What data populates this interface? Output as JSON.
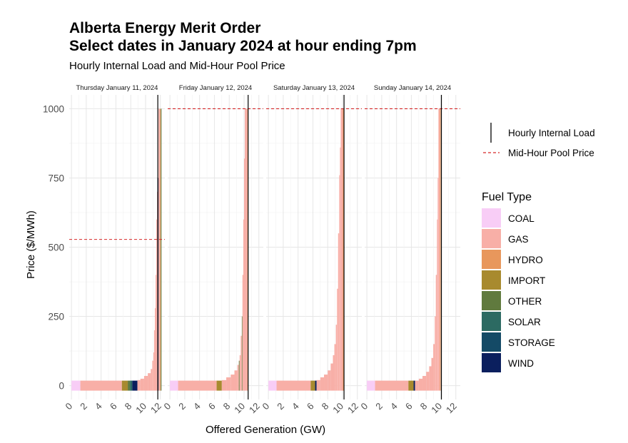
{
  "chart_data": {
    "type": "step-area",
    "title_line1": "Alberta Energy Merit Order",
    "title_line2": "Select dates in January 2024 at hour ending 7pm",
    "subtitle": "Hourly Internal Load and Mid-Hour Pool Price",
    "xlabel": "Offered Generation (GW)",
    "ylabel": "Price ($/MWh)",
    "xlim": [
      -0.3,
      12.6
    ],
    "ylim": [
      -50,
      1050
    ],
    "xticks": [
      0,
      2,
      4,
      6,
      8,
      10,
      12
    ],
    "yticks": [
      0,
      250,
      500,
      750,
      1000
    ],
    "fuel_colors": {
      "COAL": "#f8cdf6",
      "GAS": "#f8afa7",
      "HYDRO": "#e8975c",
      "IMPORT": "#a88a2e",
      "OTHER": "#607a3e",
      "SOLAR": "#2c6a62",
      "STORAGE": "#144a66",
      "WIND": "#0b1f5e"
    },
    "lines": {
      "load_label": "Hourly Internal Load",
      "price_label": "Mid-Hour Pool Price",
      "load_color": "#000000",
      "price_color": "#d62728"
    },
    "legend_title": "Fuel Type",
    "legend_order": [
      "COAL",
      "GAS",
      "HYDRO",
      "IMPORT",
      "OTHER",
      "SOLAR",
      "STORAGE",
      "WIND"
    ],
    "panels": [
      {
        "label": "Thursday January 11, 2024",
        "load_gw": 11.65,
        "pool_price": 528,
        "segments": [
          {
            "x0": 0,
            "x1": 1.2,
            "price": 0,
            "fuel": "COAL"
          },
          {
            "x0": 1.2,
            "x1": 6.8,
            "price": 0,
            "fuel": "GAS"
          },
          {
            "x0": 6.8,
            "x1": 7.6,
            "price": 0,
            "fuel": "IMPORT"
          },
          {
            "x0": 7.6,
            "x1": 7.9,
            "price": 0,
            "fuel": "OTHER"
          },
          {
            "x0": 7.9,
            "x1": 8.2,
            "price": 0,
            "fuel": "SOLAR"
          },
          {
            "x0": 8.2,
            "x1": 8.9,
            "price": 0,
            "fuel": "WIND"
          },
          {
            "x0": 8.9,
            "x1": 9.3,
            "price": 20,
            "fuel": "GAS"
          },
          {
            "x0": 9.3,
            "x1": 9.8,
            "price": 25,
            "fuel": "GAS"
          },
          {
            "x0": 9.8,
            "x1": 10.3,
            "price": 35,
            "fuel": "GAS"
          },
          {
            "x0": 10.3,
            "x1": 10.7,
            "price": 45,
            "fuel": "GAS"
          },
          {
            "x0": 10.7,
            "x1": 10.9,
            "price": 60,
            "fuel": "GAS"
          },
          {
            "x0": 10.9,
            "x1": 11.05,
            "price": 90,
            "fuel": "GAS"
          },
          {
            "x0": 11.05,
            "x1": 11.15,
            "price": 120,
            "fuel": "GAS"
          },
          {
            "x0": 11.15,
            "x1": 11.25,
            "price": 200,
            "fuel": "GAS"
          },
          {
            "x0": 11.25,
            "x1": 11.35,
            "price": 280,
            "fuel": "GAS"
          },
          {
            "x0": 11.35,
            "x1": 11.45,
            "price": 400,
            "fuel": "GAS"
          },
          {
            "x0": 11.45,
            "x1": 11.55,
            "price": 600,
            "fuel": "GAS"
          },
          {
            "x0": 11.55,
            "x1": 11.65,
            "price": 700,
            "fuel": "GAS"
          },
          {
            "x0": 11.65,
            "x1": 11.75,
            "price": 750,
            "fuel": "WIND"
          },
          {
            "x0": 11.75,
            "x1": 11.95,
            "price": 1000,
            "fuel": "GAS"
          },
          {
            "x0": 11.95,
            "x1": 12.05,
            "price": 1000,
            "fuel": "HYDRO"
          },
          {
            "x0": 12.05,
            "x1": 12.15,
            "price": 1000,
            "fuel": "OTHER"
          }
        ]
      },
      {
        "label": "Friday January 12, 2024",
        "load_gw": 10.55,
        "pool_price": 999.99,
        "segments": [
          {
            "x0": 0,
            "x1": 1.1,
            "price": 0,
            "fuel": "COAL"
          },
          {
            "x0": 1.1,
            "x1": 6.3,
            "price": 0,
            "fuel": "GAS"
          },
          {
            "x0": 6.3,
            "x1": 7.0,
            "price": 0,
            "fuel": "IMPORT"
          },
          {
            "x0": 7.0,
            "x1": 7.6,
            "price": 20,
            "fuel": "GAS"
          },
          {
            "x0": 7.6,
            "x1": 8.2,
            "price": 30,
            "fuel": "GAS"
          },
          {
            "x0": 8.2,
            "x1": 8.7,
            "price": 40,
            "fuel": "GAS"
          },
          {
            "x0": 8.7,
            "x1": 9.1,
            "price": 55,
            "fuel": "GAS"
          },
          {
            "x0": 9.1,
            "x1": 9.3,
            "price": 75,
            "fuel": "GAS"
          },
          {
            "x0": 9.3,
            "x1": 9.4,
            "price": 90,
            "fuel": "OTHER"
          },
          {
            "x0": 9.4,
            "x1": 9.55,
            "price": 110,
            "fuel": "GAS"
          },
          {
            "x0": 9.55,
            "x1": 9.7,
            "price": 180,
            "fuel": "GAS"
          },
          {
            "x0": 9.7,
            "x1": 9.78,
            "price": 250,
            "fuel": "OTHER"
          },
          {
            "x0": 9.78,
            "x1": 9.9,
            "price": 400,
            "fuel": "GAS"
          },
          {
            "x0": 9.9,
            "x1": 10.0,
            "price": 600,
            "fuel": "GAS"
          },
          {
            "x0": 10.0,
            "x1": 10.1,
            "price": 820,
            "fuel": "GAS"
          },
          {
            "x0": 10.1,
            "x1": 10.45,
            "price": 1000,
            "fuel": "GAS"
          },
          {
            "x0": 10.45,
            "x1": 10.55,
            "price": 1000,
            "fuel": "HYDRO"
          }
        ]
      },
      {
        "label": "Saturday January 13, 2024",
        "load_gw": 10.2,
        "pool_price": 999.99,
        "segments": [
          {
            "x0": 0,
            "x1": 1.1,
            "price": 0,
            "fuel": "COAL"
          },
          {
            "x0": 1.1,
            "x1": 5.7,
            "price": 0,
            "fuel": "GAS"
          },
          {
            "x0": 5.7,
            "x1": 6.3,
            "price": 0,
            "fuel": "IMPORT"
          },
          {
            "x0": 6.3,
            "x1": 6.5,
            "price": 0,
            "fuel": "WIND"
          },
          {
            "x0": 6.5,
            "x1": 7.0,
            "price": 20,
            "fuel": "GAS"
          },
          {
            "x0": 7.0,
            "x1": 7.5,
            "price": 30,
            "fuel": "GAS"
          },
          {
            "x0": 7.5,
            "x1": 8.0,
            "price": 40,
            "fuel": "GAS"
          },
          {
            "x0": 8.0,
            "x1": 8.4,
            "price": 55,
            "fuel": "GAS"
          },
          {
            "x0": 8.4,
            "x1": 8.7,
            "price": 80,
            "fuel": "GAS"
          },
          {
            "x0": 8.7,
            "x1": 8.9,
            "price": 110,
            "fuel": "GAS"
          },
          {
            "x0": 8.9,
            "x1": 9.1,
            "price": 150,
            "fuel": "GAS"
          },
          {
            "x0": 9.1,
            "x1": 9.25,
            "price": 220,
            "fuel": "GAS"
          },
          {
            "x0": 9.25,
            "x1": 9.4,
            "price": 350,
            "fuel": "GAS"
          },
          {
            "x0": 9.4,
            "x1": 9.55,
            "price": 550,
            "fuel": "GAS"
          },
          {
            "x0": 9.55,
            "x1": 9.65,
            "price": 760,
            "fuel": "GAS"
          },
          {
            "x0": 9.65,
            "x1": 9.75,
            "price": 860,
            "fuel": "GAS"
          },
          {
            "x0": 9.75,
            "x1": 10.05,
            "price": 1000,
            "fuel": "GAS"
          },
          {
            "x0": 10.05,
            "x1": 10.15,
            "price": 1000,
            "fuel": "HYDRO"
          }
        ]
      },
      {
        "label": "Sunday January 14, 2024",
        "load_gw": 10.05,
        "pool_price": 999.99,
        "segments": [
          {
            "x0": 0,
            "x1": 1.1,
            "price": 0,
            "fuel": "COAL"
          },
          {
            "x0": 1.1,
            "x1": 5.6,
            "price": 0,
            "fuel": "GAS"
          },
          {
            "x0": 5.6,
            "x1": 6.3,
            "price": 0,
            "fuel": "IMPORT"
          },
          {
            "x0": 6.3,
            "x1": 6.5,
            "price": 0,
            "fuel": "WIND"
          },
          {
            "x0": 6.5,
            "x1": 7.0,
            "price": 15,
            "fuel": "GAS"
          },
          {
            "x0": 7.0,
            "x1": 7.5,
            "price": 25,
            "fuel": "GAS"
          },
          {
            "x0": 7.5,
            "x1": 8.0,
            "price": 35,
            "fuel": "GAS"
          },
          {
            "x0": 8.0,
            "x1": 8.4,
            "price": 50,
            "fuel": "GAS"
          },
          {
            "x0": 8.4,
            "x1": 8.7,
            "price": 70,
            "fuel": "GAS"
          },
          {
            "x0": 8.7,
            "x1": 8.95,
            "price": 100,
            "fuel": "GAS"
          },
          {
            "x0": 8.95,
            "x1": 9.15,
            "price": 150,
            "fuel": "GAS"
          },
          {
            "x0": 9.15,
            "x1": 9.3,
            "price": 250,
            "fuel": "GAS"
          },
          {
            "x0": 9.3,
            "x1": 9.45,
            "price": 400,
            "fuel": "GAS"
          },
          {
            "x0": 9.45,
            "x1": 9.55,
            "price": 600,
            "fuel": "GAS"
          },
          {
            "x0": 9.55,
            "x1": 9.65,
            "price": 750,
            "fuel": "GAS"
          },
          {
            "x0": 9.65,
            "x1": 9.85,
            "price": 1000,
            "fuel": "GAS"
          },
          {
            "x0": 9.85,
            "x1": 9.95,
            "price": 1000,
            "fuel": "HYDRO"
          }
        ]
      }
    ]
  }
}
